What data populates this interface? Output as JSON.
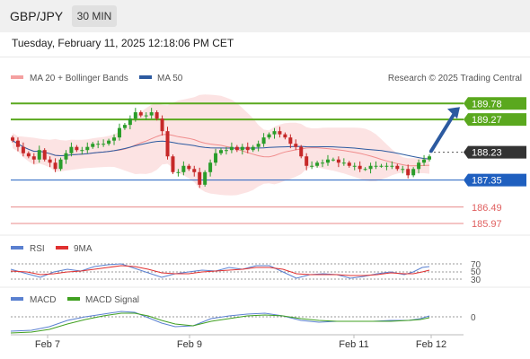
{
  "header": {
    "pair": "GBP/JPY",
    "timeframe": "30 MIN"
  },
  "datetime": "Tuesday, February 11, 2025 12:18:06 PM CET",
  "legend_main": [
    {
      "label": "MA 20 + Bollinger Bands",
      "color": "#f4a0a0"
    },
    {
      "label": "MA 50",
      "color": "#2c5aa0"
    }
  ],
  "credit": "Research © 2025 Trading Central",
  "legend_rsi": [
    {
      "label": "RSI",
      "color": "#5a80d0"
    },
    {
      "label": "9MA",
      "color": "#e03030"
    }
  ],
  "legend_macd": [
    {
      "label": "MACD",
      "color": "#5a80d0"
    },
    {
      "label": "MACD Signal",
      "color": "#40a020"
    }
  ],
  "colors": {
    "green_level": "#5aa81e",
    "blue_level": "#1f5fbf",
    "red_level": "#e06060",
    "price_tag": "#333333",
    "arrow": "#2c5aa0",
    "candle_up": "#2a9d2a",
    "candle_down": "#c62828"
  },
  "chart_data": {
    "type": "candlestick",
    "price_axis": {
      "ylim": [
        185.6,
        190.3
      ]
    },
    "levels": [
      {
        "label": "189.78",
        "value": 189.78,
        "kind": "resistance"
      },
      {
        "label": "189.27",
        "value": 189.27,
        "kind": "resistance"
      },
      {
        "label": "188.23",
        "value": 188.23,
        "kind": "current"
      },
      {
        "label": "187.35",
        "value": 187.35,
        "kind": "support"
      },
      {
        "label": "186.49",
        "value": 186.49,
        "kind": "support"
      },
      {
        "label": "185.97",
        "value": 185.97,
        "kind": "support"
      }
    ],
    "x_labels": [
      "Feb 7",
      "Feb 9",
      "Feb 11",
      "Feb 12"
    ],
    "close": [
      188.6,
      188.4,
      188.2,
      188.1,
      188.0,
      188.3,
      188.0,
      187.9,
      187.7,
      188.0,
      188.2,
      188.4,
      188.3,
      188.3,
      188.4,
      188.5,
      188.5,
      188.5,
      188.6,
      188.7,
      189.0,
      189.1,
      189.3,
      189.5,
      189.4,
      189.4,
      189.5,
      189.3,
      188.9,
      188.1,
      187.6,
      187.6,
      187.8,
      187.7,
      187.6,
      187.2,
      187.6,
      187.9,
      188.2,
      188.3,
      188.3,
      188.4,
      188.3,
      188.4,
      188.3,
      188.4,
      188.5,
      188.7,
      188.8,
      188.9,
      188.8,
      188.7,
      188.5,
      188.4,
      188.1,
      187.8,
      187.8,
      187.9,
      187.9,
      188.0,
      188.0,
      187.9,
      187.9,
      187.8,
      187.8,
      187.7,
      187.7,
      187.8,
      187.8,
      187.8,
      187.8,
      187.8,
      187.7,
      187.7,
      187.5,
      187.7,
      187.9,
      188.0,
      188.1
    ],
    "rsi_axis": {
      "labels": [
        "70",
        "50",
        "30"
      ],
      "values": [
        70,
        50,
        30
      ]
    },
    "macd_axis": {
      "labels": [
        "0"
      ],
      "values": [
        0
      ]
    }
  }
}
